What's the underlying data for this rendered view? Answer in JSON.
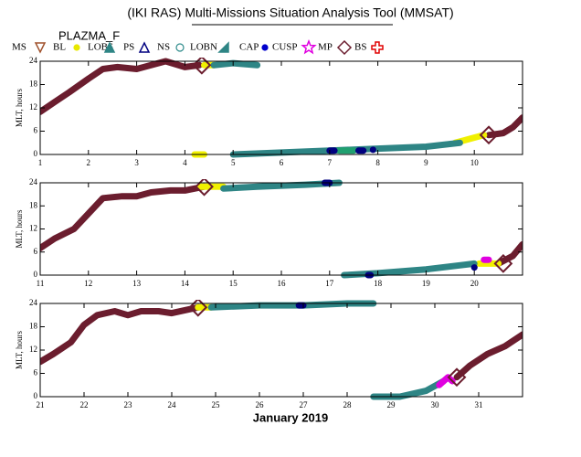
{
  "title": "(IKI RAS) Multi-Missions Situation Analysis Tool (MMSAT)",
  "subtitle": "PLAZMA_F",
  "x_label": "January 2019",
  "legend": [
    {
      "name": "MS",
      "color": "#a0522d",
      "marker": "triangle-down"
    },
    {
      "name": "BL",
      "color": "#e8e800",
      "marker": "dot"
    },
    {
      "name": "LOBS",
      "color": "#2e8585",
      "marker": "triangle-filled"
    },
    {
      "name": "PS",
      "color": "#000080",
      "marker": "triangle-open"
    },
    {
      "name": "NS",
      "color": "#2e8b8b",
      "marker": "circle-open"
    },
    {
      "name": "LOBN",
      "color": "#2e8585",
      "marker": "wedge"
    },
    {
      "name": "CAP",
      "color": "#0000cc",
      "marker": "dot"
    },
    {
      "name": "CUSP",
      "color": "#e000e0",
      "marker": "star"
    },
    {
      "name": "MP",
      "color": "#6b1d2e",
      "marker": "diamond"
    },
    {
      "name": "BS",
      "color": "#e00000",
      "marker": "cross"
    }
  ],
  "chart_data": [
    {
      "type": "scatter",
      "ylabel": "MLT, hours",
      "xlim": [
        1,
        11
      ],
      "xticks": [
        1,
        2,
        3,
        4,
        5,
        6,
        7,
        8,
        9,
        10
      ],
      "ylim": [
        0,
        24
      ],
      "yticks": [
        0,
        6,
        12,
        18,
        24
      ],
      "series": [
        {
          "name": "MS",
          "color": "#6b1d2e",
          "x": [
            1,
            1.3,
            1.6,
            2,
            2.3,
            2.6,
            3,
            3.3,
            3.6,
            4,
            4.3,
            7,
            10.3,
            10.6,
            10.8,
            11
          ],
          "values": [
            11,
            13.5,
            16,
            19.5,
            22,
            22.5,
            22,
            23,
            24,
            22.5,
            23,
            null,
            5,
            5.5,
            7,
            9.5
          ]
        },
        {
          "name": "BL",
          "color": "#f0f000",
          "x": [
            4.4,
            4.6,
            4.5,
            4.2,
            4.4,
            7,
            9.6,
            9.9,
            10.2
          ],
          "values": [
            23,
            23,
            null,
            0,
            0,
            null,
            3,
            4,
            5
          ]
        },
        {
          "name": "LOBS",
          "color": "#2e8585",
          "x": [
            4.6,
            5.0,
            5.5,
            5.55,
            5.0,
            6.0,
            7.0,
            8.0,
            9.0,
            9.7
          ],
          "values": [
            23,
            23.5,
            23,
            null,
            0,
            0.5,
            1,
            1.5,
            2,
            3
          ]
        },
        {
          "name": "LOBN",
          "color": "#20a070",
          "x": [
            7.2,
            7.5
          ],
          "values": [
            1,
            1
          ]
        },
        {
          "name": "PS",
          "color": "#00007f",
          "x": [
            7.0,
            7.1,
            7.2,
            7.6,
            7.7,
            7.8,
            7.9
          ],
          "values": [
            1,
            1,
            null,
            1,
            1,
            null,
            1.2
          ]
        },
        {
          "name": "MP",
          "color": "#6b1d2e",
          "marker": "diamond",
          "x": [
            4.35,
            10.3
          ],
          "values": [
            23,
            5
          ]
        }
      ]
    },
    {
      "type": "scatter",
      "ylabel": "MLT, hours",
      "xlim": [
        11,
        21
      ],
      "xticks": [
        11,
        12,
        13,
        14,
        15,
        16,
        17,
        18,
        19,
        20
      ],
      "ylim": [
        0,
        24
      ],
      "yticks": [
        0,
        6,
        12,
        18,
        24
      ],
      "series": [
        {
          "name": "MS",
          "color": "#6b1d2e",
          "x": [
            11,
            11.3,
            11.7,
            12,
            12.3,
            12.7,
            13,
            13.3,
            13.7,
            14,
            14.4,
            17,
            20.5,
            20.8,
            21
          ],
          "values": [
            7,
            9.5,
            12,
            16,
            20,
            20.5,
            20.5,
            21.5,
            22,
            22,
            23,
            null,
            3,
            5,
            8
          ]
        },
        {
          "name": "BL",
          "color": "#f0f000",
          "x": [
            14.3,
            14.8,
            17,
            20.1,
            20.5
          ],
          "values": [
            23,
            23,
            null,
            3,
            3
          ]
        },
        {
          "name": "LOBS",
          "color": "#2e8585",
          "x": [
            14.8,
            15.5,
            16.5,
            17.2,
            17.25,
            17.3,
            18,
            19,
            20
          ],
          "values": [
            22.5,
            23,
            23.5,
            24,
            null,
            0,
            0.5,
            1.5,
            3
          ]
        },
        {
          "name": "PS",
          "color": "#00007f",
          "x": [
            16.9,
            17,
            17.5,
            17.8,
            17.85,
            19.9,
            20
          ],
          "values": [
            24,
            24,
            null,
            0,
            0,
            null,
            2
          ]
        },
        {
          "name": "CUSP",
          "color": "#e000e0",
          "x": [
            20.2,
            20.3
          ],
          "values": [
            4,
            4
          ]
        },
        {
          "name": "MP",
          "color": "#6b1d2e",
          "marker": "diamond",
          "x": [
            14.4,
            20.6
          ],
          "values": [
            23,
            3
          ]
        }
      ]
    },
    {
      "type": "scatter",
      "ylabel": "MLT, hours",
      "xlim": [
        21,
        32
      ],
      "xticks": [
        21,
        22,
        23,
        24,
        25,
        26,
        27,
        28,
        29,
        30,
        31
      ],
      "ylim": [
        0,
        24
      ],
      "yticks": [
        0,
        6,
        12,
        18,
        24
      ],
      "series": [
        {
          "name": "MS",
          "color": "#6b1d2e",
          "x": [
            21,
            21.3,
            21.7,
            22,
            22.3,
            22.7,
            23,
            23.3,
            23.7,
            24,
            24.6,
            27,
            30.5,
            30.8,
            31.2,
            31.6,
            32
          ],
          "values": [
            9,
            11,
            14,
            18.5,
            21,
            22,
            21,
            22,
            22,
            21.5,
            23,
            null,
            5,
            8,
            11,
            13,
            16
          ]
        },
        {
          "name": "BL",
          "color": "#f0f000",
          "x": [
            24.6,
            24.9
          ],
          "values": [
            23,
            23
          ]
        },
        {
          "name": "LOBS",
          "color": "#2e8585",
          "x": [
            24.9,
            26,
            27,
            28,
            28.6,
            28.65,
            28.6,
            29.2,
            29.8,
            30.2
          ],
          "values": [
            23,
            23.5,
            23.5,
            24,
            24,
            null,
            0,
            0,
            1.5,
            4
          ]
        },
        {
          "name": "PS",
          "color": "#00007f",
          "x": [
            26.9,
            27.0
          ],
          "values": [
            23.5,
            23.5
          ]
        },
        {
          "name": "CUSP",
          "color": "#e000e0",
          "x": [
            30.1,
            30.2,
            30.3,
            30.4
          ],
          "values": [
            3,
            4,
            5,
            4
          ]
        },
        {
          "name": "MP",
          "color": "#6b1d2e",
          "marker": "diamond",
          "x": [
            24.6,
            30.5
          ],
          "values": [
            23,
            5
          ]
        }
      ]
    }
  ]
}
